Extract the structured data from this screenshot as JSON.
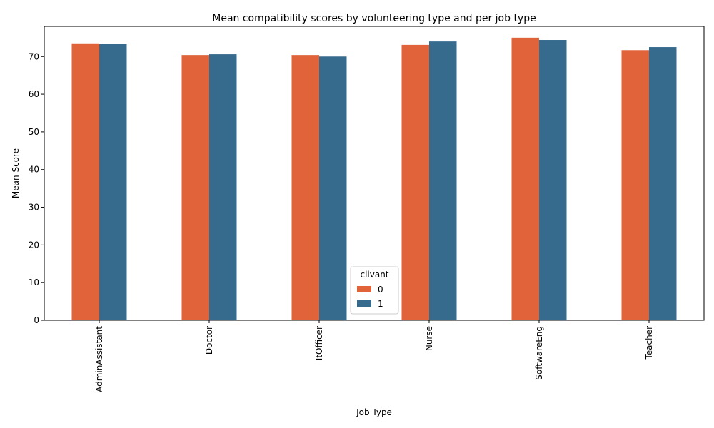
{
  "chart_data": {
    "type": "bar",
    "title": "Mean compatibility scores by volunteering type and per job type",
    "xlabel": "Job Type",
    "ylabel": "Mean Score",
    "categories": [
      "AdminAssistant",
      "Doctor",
      "ItOfficer",
      "Nurse",
      "SoftwareEng",
      "Teacher"
    ],
    "series": [
      {
        "name": "0",
        "color": "#e06339",
        "values": [
          73.5,
          70.4,
          70.4,
          73.1,
          75.0,
          71.7
        ]
      },
      {
        "name": "1",
        "color": "#376b8e",
        "values": [
          73.3,
          70.6,
          70.0,
          74.0,
          74.4,
          72.5
        ]
      }
    ],
    "ylim": [
      0,
      78
    ],
    "yticks": [
      0,
      10,
      20,
      30,
      40,
      50,
      60,
      70
    ],
    "grid": false,
    "legend": {
      "title": "clivant",
      "placement": "lower-center"
    }
  }
}
